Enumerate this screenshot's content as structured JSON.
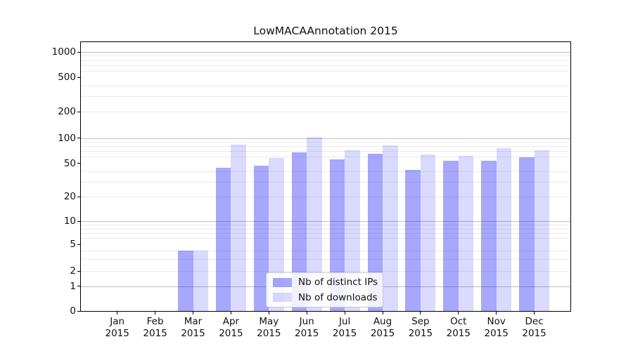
{
  "title": "LowMACAAnnotation 2015",
  "colors": {
    "bar_distinct_ips_hex": "#a6a6f7",
    "bar_downloads_hex": "#dadafd",
    "bar_distinct_ips": "rgba(10,10,245,0.36)",
    "bar_downloads": "rgba(10,10,245,0.15)",
    "major_grid": "#c0c0c0",
    "minor_grid": "#ebebeb",
    "axis": "#000000"
  },
  "chart_data": {
    "type": "bar",
    "title": "LowMACAAnnotation 2015",
    "categories": [
      "Jan 2015",
      "Feb 2015",
      "Mar 2015",
      "Apr 2015",
      "May 2015",
      "Jun 2015",
      "Jul 2015",
      "Aug 2015",
      "Sep 2015",
      "Oct 2015",
      "Nov 2015",
      "Dec 2015"
    ],
    "series": [
      {
        "name": "Nb of distinct IPs",
        "color": "rgba(10,10,245,0.36)",
        "values": [
          0,
          0,
          4,
          44,
          47,
          68,
          56,
          65,
          42,
          53,
          54,
          59
        ]
      },
      {
        "name": "Nb of downloads",
        "color": "rgba(10,10,245,0.15)",
        "values": [
          0,
          0,
          4,
          84,
          58,
          103,
          71,
          81,
          64,
          61,
          75,
          71
        ]
      }
    ],
    "yscale": "symlog",
    "yticks": [
      0,
      1,
      2,
      5,
      10,
      20,
      50,
      100,
      200,
      500,
      1000
    ],
    "minor_gridline_values": [
      2,
      3,
      4,
      6,
      7,
      8,
      9,
      20,
      30,
      40,
      60,
      70,
      80,
      90,
      200,
      300,
      400,
      600,
      700,
      800,
      900
    ],
    "major_gridline_values": [
      1,
      10,
      100,
      1000
    ],
    "ylim": [
      0,
      1300
    ],
    "xlabel": "",
    "ylabel": "",
    "grid": true,
    "legend_position": "lower center"
  }
}
